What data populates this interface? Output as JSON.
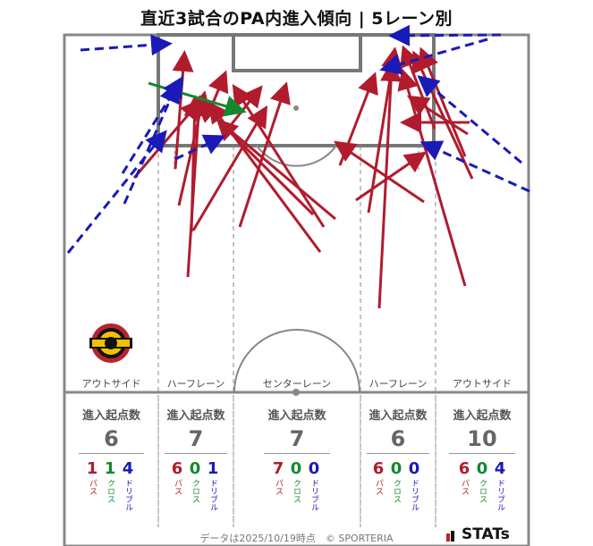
{
  "title": "直近3試合のPA内進入傾向 | 5レーン別",
  "lanes": [
    {
      "name": "アウトサイド",
      "stat_label": "進入起点数",
      "total": "6",
      "pass": "1",
      "cross": "1",
      "dribble": "4"
    },
    {
      "name": "ハーフレーン",
      "stat_label": "進入起点数",
      "total": "7",
      "pass": "6",
      "cross": "0",
      "dribble": "1"
    },
    {
      "name": "センターレーン",
      "stat_label": "進入起点数",
      "total": "7",
      "pass": "7",
      "cross": "0",
      "dribble": "0"
    },
    {
      "name": "ハーフレーン",
      "stat_label": "進入起点数",
      "total": "6",
      "pass": "6",
      "cross": "0",
      "dribble": "0"
    },
    {
      "name": "アウトサイド",
      "stat_label": "進入起点数",
      "total": "10",
      "pass": "6",
      "cross": "0",
      "dribble": "4"
    }
  ],
  "legend_labels": {
    "pass": "パス",
    "cross": "クロス",
    "dribble": "ドリブル"
  },
  "footer": "データは2025/10/19時点　© SPORTERIA",
  "brand": "STATs",
  "colors": {
    "pass": "#b01c2e",
    "cross": "#118a2e",
    "dribble": "#1a1ab8",
    "pitch_line": "#888888"
  }
}
